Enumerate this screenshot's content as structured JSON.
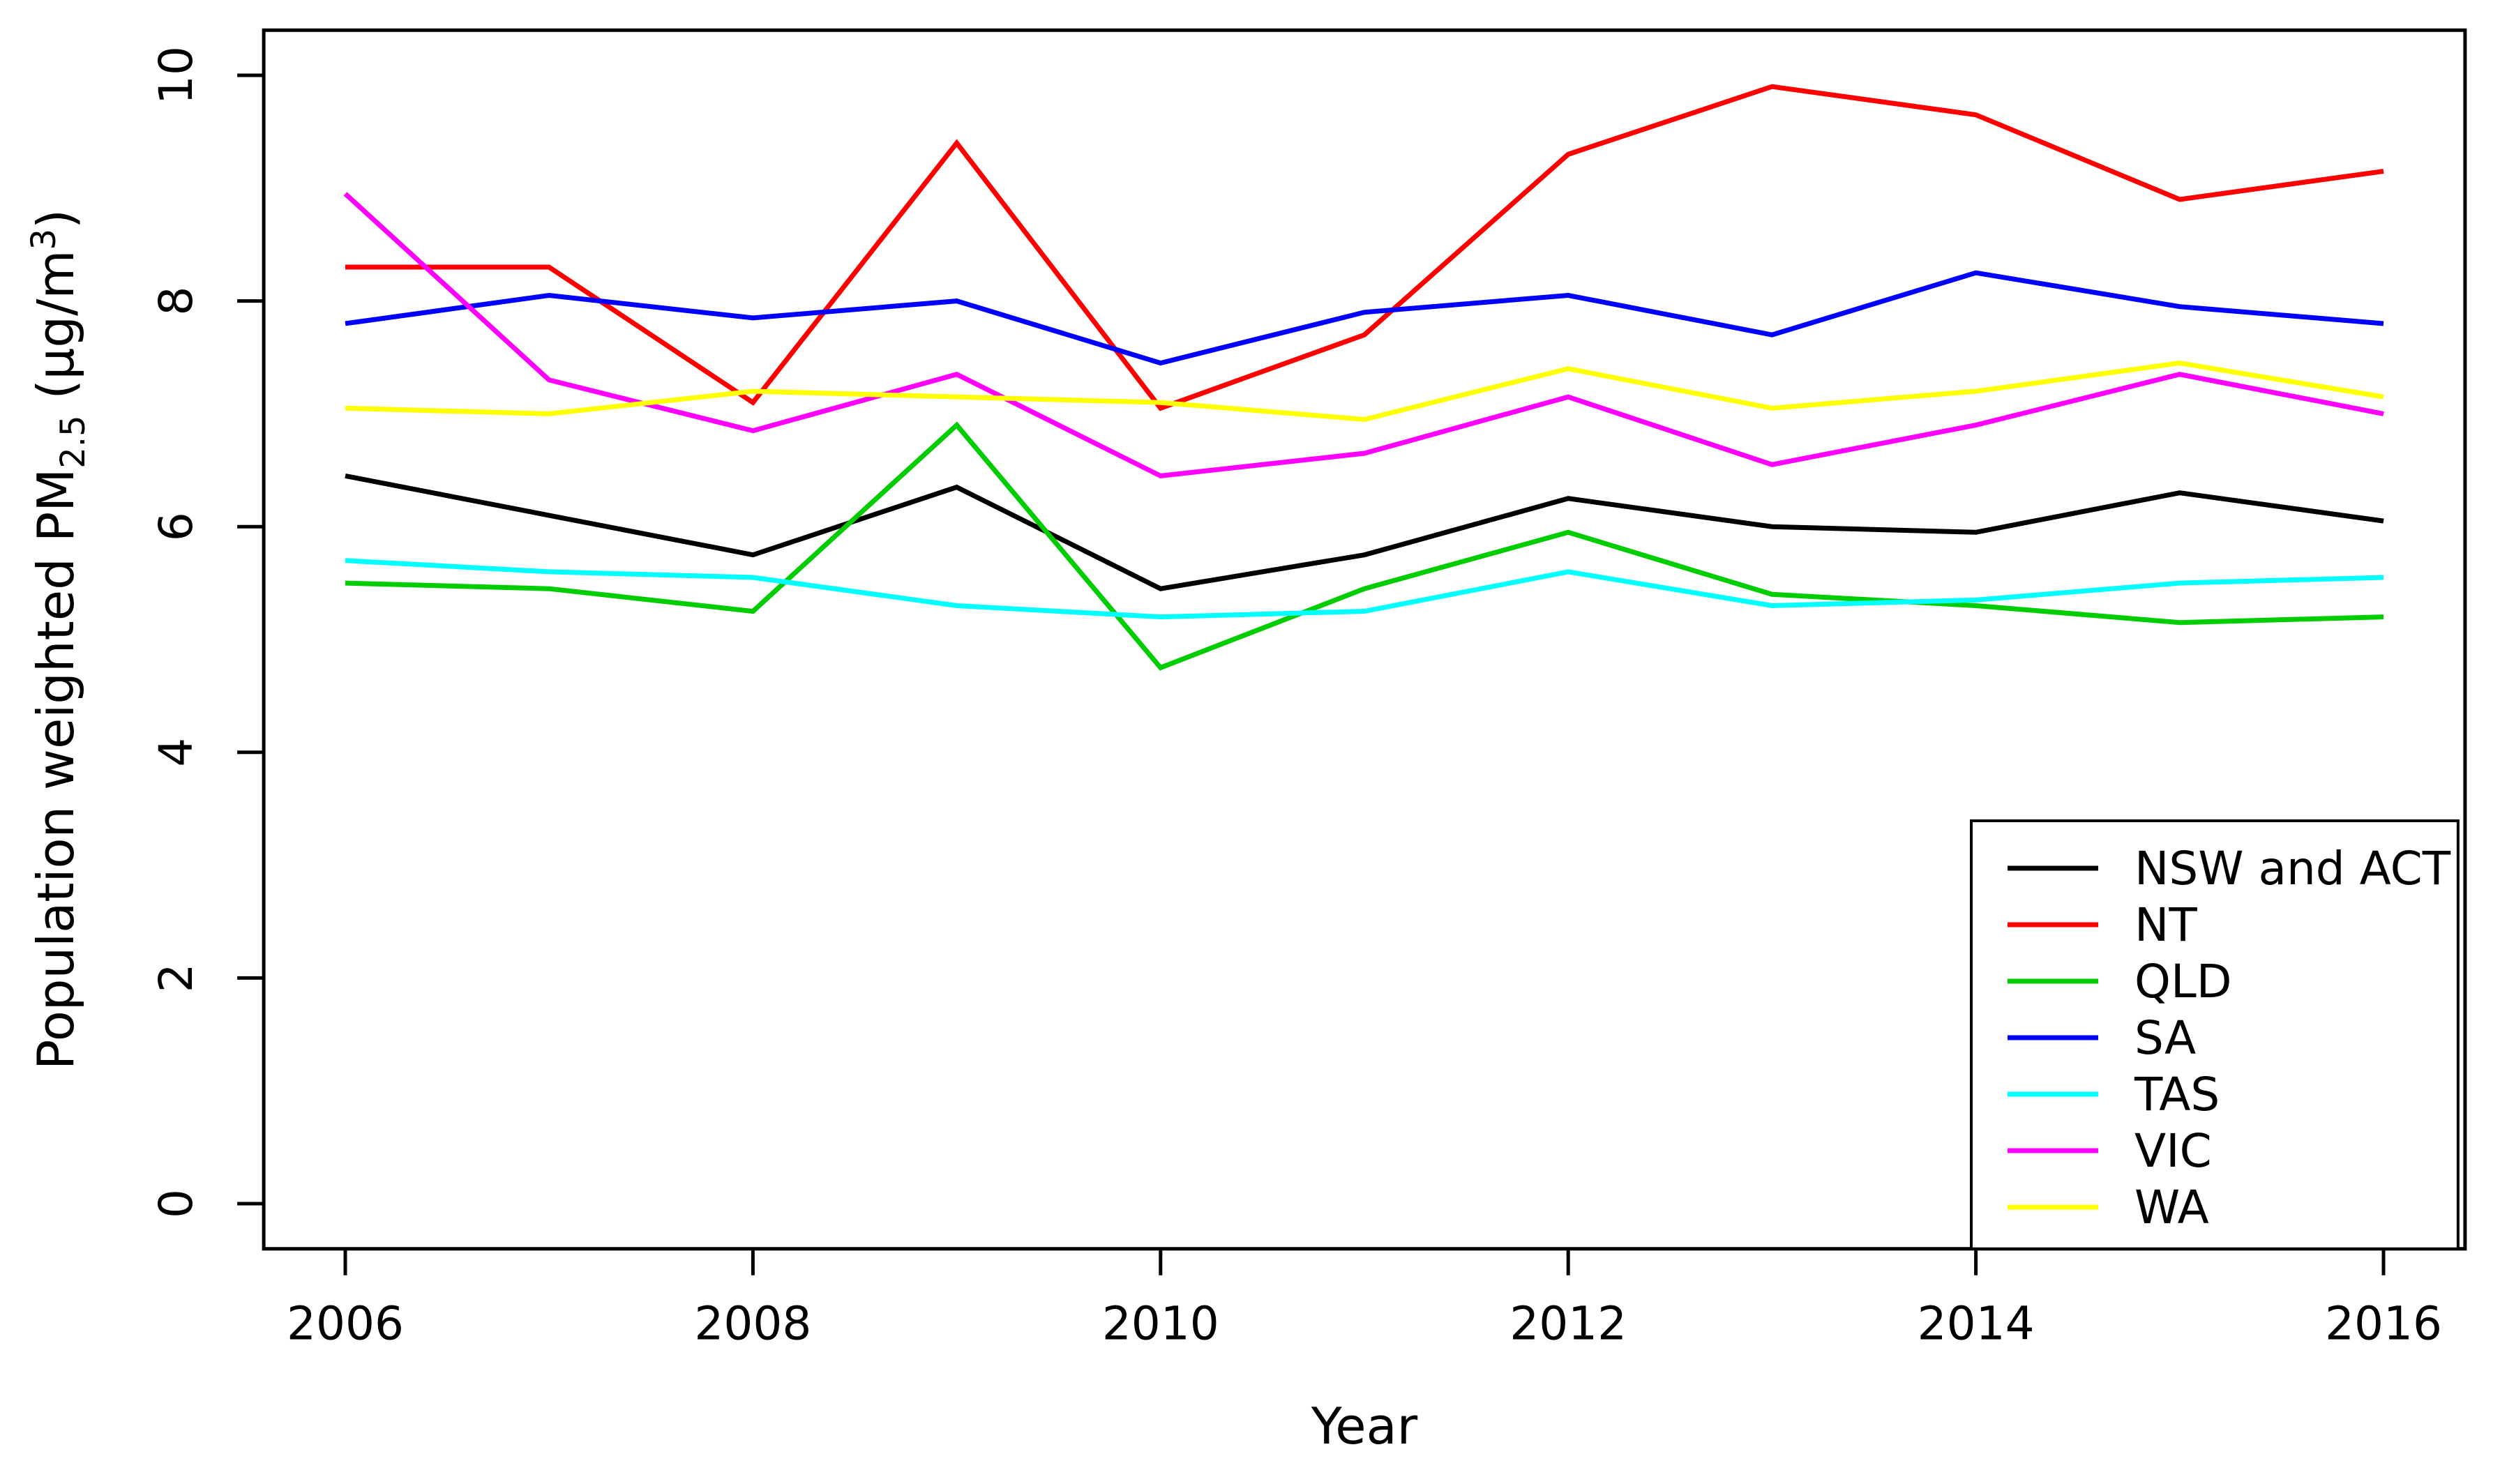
{
  "figure": {
    "background": "#FFFFFF",
    "frame_color": "#000000"
  },
  "chart_data": {
    "type": "line",
    "title": "",
    "xlabel": "Year",
    "ylabel": "Population weighted PM2.5 (µg/m³)",
    "ylabel_parts": {
      "prefix": "Population weighted PM",
      "subscript": "2.5",
      "middle": " (µg/m",
      "superscript": "3",
      "suffix": ")"
    },
    "xlim": [
      2006,
      2016
    ],
    "ylim": [
      0,
      10
    ],
    "xticks": [
      2006,
      2008,
      2010,
      2012,
      2014,
      2016
    ],
    "yticks": [
      0,
      2,
      4,
      6,
      8,
      10
    ],
    "grid": false,
    "legend_position": "bottom-right",
    "x": [
      2006,
      2007,
      2008,
      2009,
      2010,
      2011,
      2012,
      2013,
      2014,
      2015,
      2016
    ],
    "series": [
      {
        "name": "NSW and ACT",
        "color": "#000000",
        "values": [
          6.45,
          6.1,
          5.75,
          6.35,
          5.45,
          5.75,
          6.25,
          6.0,
          5.95,
          6.3,
          6.05
        ]
      },
      {
        "name": "NT",
        "color": "#FF0000",
        "values": [
          8.3,
          8.3,
          7.1,
          9.4,
          7.05,
          7.7,
          9.3,
          9.9,
          9.65,
          8.9,
          9.15
        ]
      },
      {
        "name": "QLD",
        "color": "#00CD00",
        "values": [
          5.5,
          5.45,
          5.25,
          6.9,
          4.75,
          5.45,
          5.95,
          5.4,
          5.3,
          5.15,
          5.2
        ]
      },
      {
        "name": "SA",
        "color": "#0000FF",
        "values": [
          7.8,
          8.05,
          7.85,
          8.0,
          7.45,
          7.9,
          8.05,
          7.7,
          8.25,
          7.95,
          7.8
        ]
      },
      {
        "name": "TAS",
        "color": "#00FFFF",
        "values": [
          5.7,
          5.6,
          5.55,
          5.3,
          5.2,
          5.25,
          5.6,
          5.3,
          5.35,
          5.5,
          5.55
        ]
      },
      {
        "name": "VIC",
        "color": "#FF00FF",
        "values": [
          8.95,
          7.3,
          6.85,
          7.35,
          6.45,
          6.65,
          7.15,
          6.55,
          6.9,
          7.35,
          7.0
        ]
      },
      {
        "name": "WA",
        "color": "#FFFF00",
        "values": [
          7.05,
          7.0,
          7.2,
          7.15,
          7.1,
          6.95,
          7.4,
          7.05,
          7.2,
          7.45,
          7.15
        ]
      }
    ]
  }
}
